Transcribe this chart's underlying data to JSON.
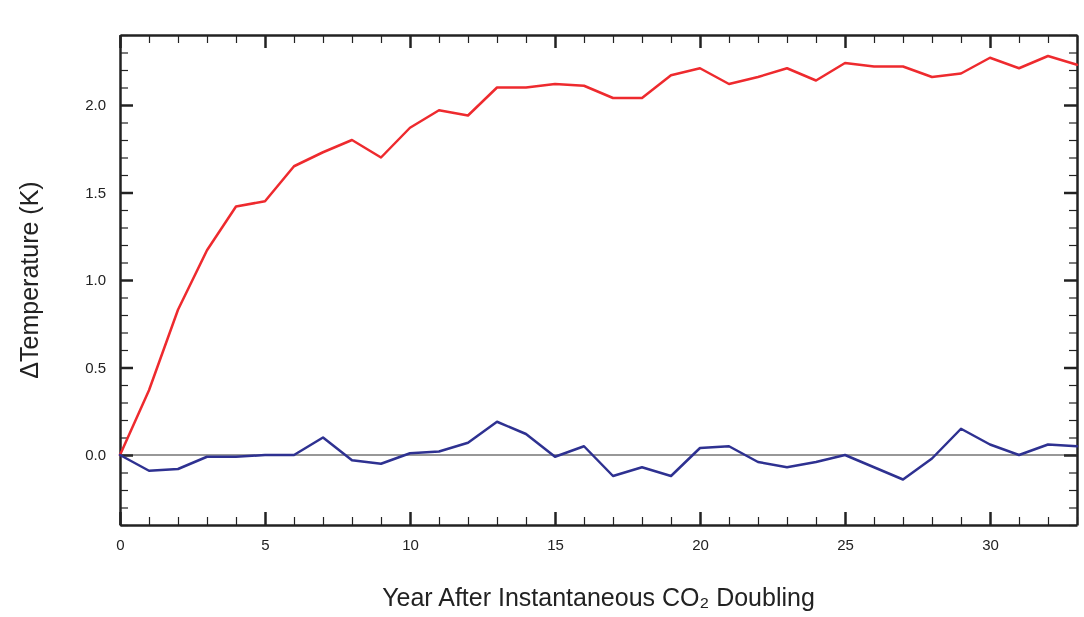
{
  "chart_data": {
    "type": "line",
    "xlabel": "Year After Instantaneous CO₂ Doubling",
    "ylabel": "ΔTemperature (K)",
    "x": [
      0,
      1,
      2,
      3,
      4,
      5,
      6,
      7,
      8,
      9,
      10,
      11,
      12,
      13,
      14,
      15,
      16,
      17,
      18,
      19,
      20,
      21,
      22,
      23,
      24,
      25,
      26,
      27,
      28,
      29,
      30,
      31,
      32,
      33
    ],
    "series": [
      {
        "color": "#ee2a2e",
        "values": [
          0,
          0.37,
          0.83,
          1.17,
          1.42,
          1.45,
          1.65,
          1.73,
          1.8,
          1.7,
          1.87,
          1.97,
          1.94,
          2.1,
          2.1,
          2.12,
          2.11,
          2.04,
          2.04,
          2.17,
          2.21,
          2.12,
          2.16,
          2.21,
          2.14,
          2.24,
          2.22,
          2.22,
          2.16,
          2.18,
          2.27,
          2.21,
          2.28,
          2.23
        ]
      },
      {
        "color": "#2e3191",
        "values": [
          0,
          -0.09,
          -0.08,
          -0.01,
          -0.01,
          0,
          0,
          0.1,
          -0.03,
          -0.05,
          0.01,
          0.02,
          0.07,
          0.19,
          0.12,
          -0.01,
          0.05,
          -0.12,
          -0.07,
          -0.12,
          0.04,
          0.05,
          -0.04,
          -0.07,
          -0.04,
          0,
          -0.07,
          -0.14,
          -0.02,
          0.15,
          0.06,
          0,
          0.06,
          0.05
        ]
      }
    ],
    "xlim": [
      0,
      33
    ],
    "ylim": [
      -0.4,
      2.4
    ],
    "xticks": [
      0,
      {
        "value": 1,
        "label": null
      },
      {
        "value": 2,
        "label": null
      },
      {
        "value": 3,
        "label": null
      },
      {
        "value": 4,
        "label": null
      },
      5,
      {
        "value": 6,
        "label": null
      },
      {
        "value": 7,
        "label": null
      },
      {
        "value": 8,
        "label": null
      },
      {
        "value": 9,
        "label": null
      },
      10,
      {
        "value": 11,
        "label": null
      },
      {
        "value": 12,
        "label": null
      },
      {
        "value": 13,
        "label": null
      },
      {
        "value": 14,
        "label": null
      },
      15,
      {
        "value": 16,
        "label": null
      },
      {
        "value": 17,
        "label": null
      },
      {
        "value": 18,
        "label": null
      },
      {
        "value": 19,
        "label": null
      },
      20,
      {
        "value": 21,
        "label": null
      },
      {
        "value": 22,
        "label": null
      },
      {
        "value": 23,
        "label": null
      },
      {
        "value": 24,
        "label": null
      },
      25,
      {
        "value": 26,
        "label": null
      },
      {
        "value": 27,
        "label": null
      },
      {
        "value": 28,
        "label": null
      },
      {
        "value": 29,
        "label": null
      },
      30,
      {
        "value": 31,
        "label": null
      },
      {
        "value": 32,
        "label": null
      },
      {
        "value": 33,
        "label": null
      }
    ],
    "yticks": [
      {
        "value": -0.4,
        "label": null
      },
      {
        "value": -0.3,
        "label": null
      },
      {
        "value": -0.2,
        "label": null
      },
      {
        "value": -0.1,
        "label": null
      },
      {
        "value": 0,
        "label": "0.0"
      },
      {
        "value": 0.1,
        "label": null
      },
      {
        "value": 0.2,
        "label": null
      },
      {
        "value": 0.3,
        "label": null
      },
      {
        "value": 0.4,
        "label": null
      },
      0.5,
      {
        "value": 0.6,
        "label": null
      },
      {
        "value": 0.7,
        "label": null
      },
      {
        "value": 0.8,
        "label": null
      },
      {
        "value": 0.9,
        "label": null
      },
      {
        "value": 1,
        "label": "1.0"
      },
      {
        "value": 1.1,
        "label": null
      },
      {
        "value": 1.2,
        "label": null
      },
      {
        "value": 1.3,
        "label": null
      },
      {
        "value": 1.4,
        "label": null
      },
      1.5,
      {
        "value": 1.6,
        "label": null
      },
      {
        "value": 1.7,
        "label": null
      },
      {
        "value": 1.8,
        "label": null
      },
      {
        "value": 1.9,
        "label": null
      },
      {
        "value": 2,
        "label": "2.0"
      },
      {
        "value": 2.1,
        "label": null
      },
      {
        "value": 2.2,
        "label": null
      },
      {
        "value": 2.3,
        "label": null
      },
      {
        "value": 2.4,
        "label": null
      }
    ],
    "ref_lines": [
      {
        "axis": "y",
        "value": 0,
        "color": "#333333"
      }
    ],
    "marker": "none",
    "line_style": "solid"
  }
}
